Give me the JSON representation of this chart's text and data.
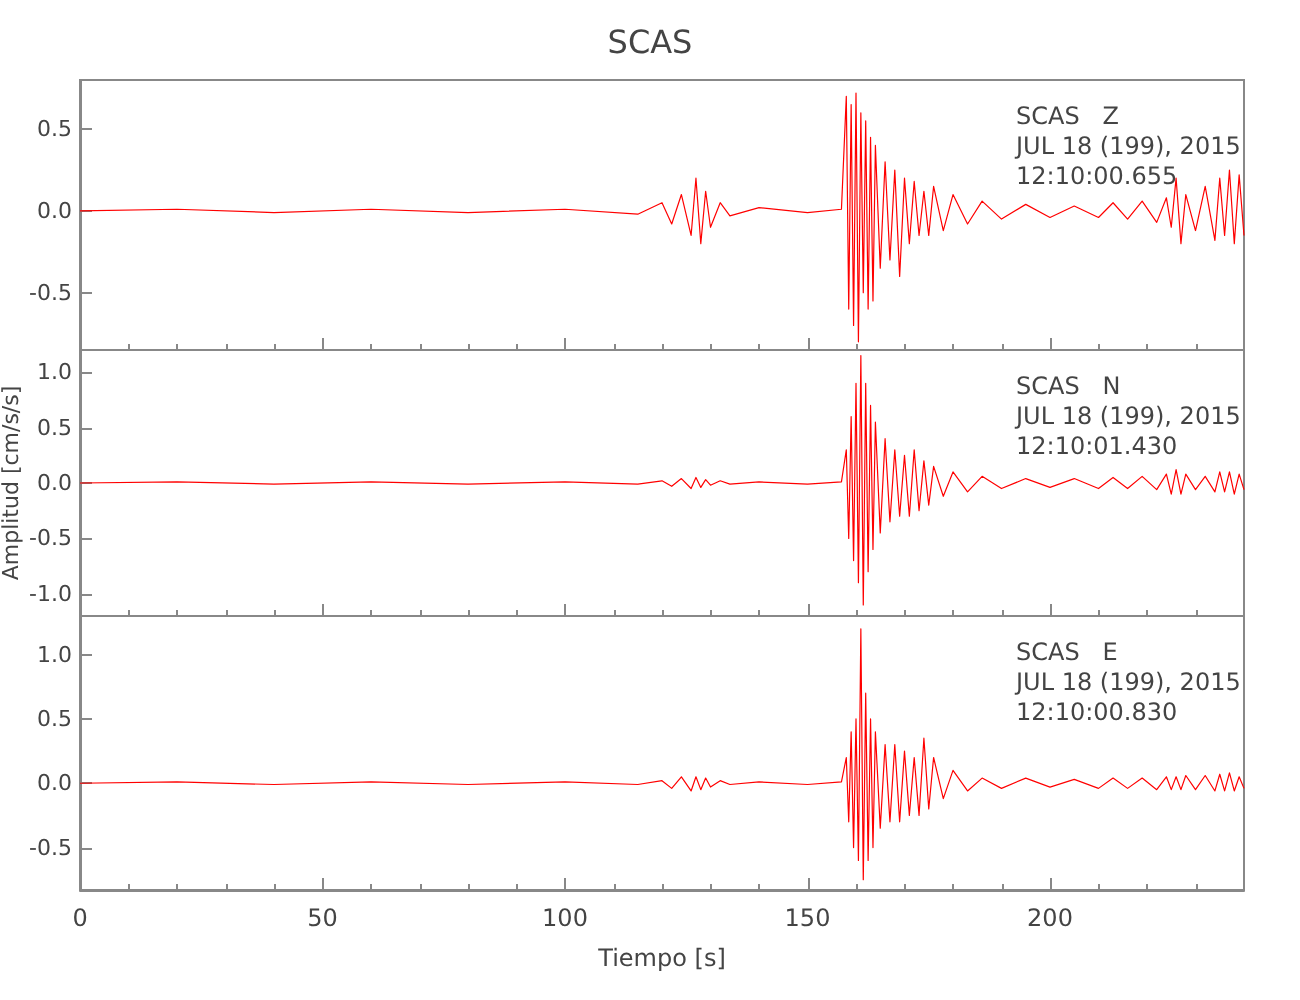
{
  "chart_data": [
    {
      "type": "line",
      "title": "SCAS",
      "xlim": [
        0,
        240
      ],
      "xticks": [
        0,
        50,
        100,
        150,
        200
      ],
      "ylim": [
        -0.85,
        0.8
      ],
      "yticks": [
        {
          "value": -0.5,
          "label": "-0.5"
        },
        {
          "value": 0,
          "label": "0.0"
        },
        {
          "value": 0.5,
          "label": "0.5"
        }
      ],
      "tick_labels": "y",
      "grid": false,
      "marker": "none",
      "line_style": "solid",
      "annotations": [
        "SCAS   Z",
        "JUL 18 (199), 2015",
        "12:10:00.655"
      ],
      "series": [
        {
          "color": "#ff0000",
          "x": [
            0,
            20,
            40,
            60,
            80,
            100,
            115,
            120,
            122,
            124,
            126,
            127,
            128,
            129,
            130,
            132,
            134,
            140,
            150,
            157,
            158,
            158.5,
            159,
            159.5,
            160,
            160.5,
            161,
            161.5,
            162,
            162.5,
            163,
            163.5,
            164,
            165,
            166,
            167,
            168,
            169,
            170,
            171,
            172,
            173,
            174,
            175,
            176,
            178,
            180,
            183,
            186,
            190,
            195,
            200,
            205,
            210,
            213,
            216,
            219,
            222,
            224,
            225,
            226,
            227,
            228,
            230,
            232,
            234,
            235,
            236,
            237,
            238,
            239,
            240
          ],
          "values": [
            0,
            0.01,
            -0.01,
            0.01,
            -0.01,
            0.01,
            -0.02,
            0.05,
            -0.08,
            0.1,
            -0.15,
            0.2,
            -0.2,
            0.12,
            -0.1,
            0.05,
            -0.03,
            0.02,
            -0.01,
            0.01,
            0.7,
            -0.6,
            0.65,
            -0.7,
            0.72,
            -0.8,
            0.6,
            -0.5,
            0.55,
            -0.6,
            0.45,
            -0.55,
            0.4,
            -0.35,
            0.3,
            -0.3,
            0.25,
            -0.4,
            0.2,
            -0.2,
            0.18,
            -0.15,
            0.12,
            -0.15,
            0.15,
            -0.12,
            0.1,
            -0.08,
            0.06,
            -0.05,
            0.04,
            -0.04,
            0.03,
            -0.04,
            0.05,
            -0.05,
            0.06,
            -0.07,
            0.08,
            -0.1,
            0.2,
            -0.2,
            0.1,
            -0.12,
            0.15,
            -0.18,
            0.2,
            -0.15,
            0.25,
            -0.2,
            0.22,
            -0.15
          ]
        }
      ]
    },
    {
      "type": "line",
      "ylabel": "Amplitud [cm/s/s]",
      "xlim": [
        0,
        240
      ],
      "xticks": [
        0,
        50,
        100,
        150,
        200
      ],
      "ylim": [
        -1.2,
        1.2
      ],
      "yticks": [
        {
          "value": -1,
          "label": "-1.0"
        },
        {
          "value": -0.5,
          "label": "-0.5"
        },
        {
          "value": 0,
          "label": "0.0"
        },
        {
          "value": 0.5,
          "label": "0.5"
        },
        {
          "value": 1,
          "label": "1.0"
        }
      ],
      "tick_labels": "y",
      "grid": false,
      "marker": "none",
      "line_style": "solid",
      "annotations": [
        "SCAS   N",
        "JUL 18 (199), 2015",
        "12:10:01.430"
      ],
      "series": [
        {
          "color": "#ff0000",
          "x": [
            0,
            20,
            40,
            60,
            80,
            100,
            115,
            120,
            122,
            124,
            126,
            127,
            128,
            129,
            130,
            132,
            134,
            140,
            150,
            157,
            158,
            158.5,
            159,
            159.5,
            160,
            160.5,
            161,
            161.5,
            162,
            162.5,
            163,
            163.5,
            164,
            165,
            166,
            167,
            168,
            169,
            170,
            171,
            172,
            173,
            174,
            175,
            176,
            178,
            180,
            183,
            186,
            190,
            195,
            200,
            205,
            210,
            213,
            216,
            219,
            222,
            224,
            225,
            226,
            227,
            228,
            230,
            232,
            234,
            235,
            236,
            237,
            238,
            239,
            240
          ],
          "values": [
            0,
            0.01,
            -0.01,
            0.01,
            -0.01,
            0.01,
            -0.01,
            0.02,
            -0.03,
            0.04,
            -0.05,
            0.05,
            -0.04,
            0.03,
            -0.02,
            0.02,
            -0.01,
            0.01,
            -0.01,
            0.01,
            0.3,
            -0.5,
            0.6,
            -0.7,
            0.9,
            -0.9,
            1.15,
            -1.1,
            0.9,
            -0.8,
            0.7,
            -0.6,
            0.55,
            -0.45,
            0.4,
            -0.35,
            0.3,
            -0.3,
            0.25,
            -0.3,
            0.3,
            -0.25,
            0.2,
            -0.2,
            0.15,
            -0.12,
            0.1,
            -0.08,
            0.06,
            -0.05,
            0.04,
            -0.04,
            0.04,
            -0.05,
            0.05,
            -0.05,
            0.06,
            -0.06,
            0.08,
            -0.1,
            0.12,
            -0.1,
            0.08,
            -0.06,
            0.06,
            -0.08,
            0.1,
            -0.08,
            0.1,
            -0.1,
            0.08,
            -0.06
          ]
        }
      ]
    },
    {
      "type": "line",
      "xlabel": "Tiempo [s]",
      "xlim": [
        0,
        240
      ],
      "xticks": [
        0,
        50,
        100,
        150,
        200
      ],
      "ylim": [
        -0.83,
        1.3
      ],
      "yticks": [
        {
          "value": -0.5,
          "label": "-0.5"
        },
        {
          "value": 0,
          "label": "0.0"
        },
        {
          "value": 0.5,
          "label": "0.5"
        },
        {
          "value": 1,
          "label": "1.0"
        }
      ],
      "grid": false,
      "marker": "none",
      "line_style": "solid",
      "annotations": [
        "SCAS   E",
        "JUL 18 (199), 2015",
        "12:10:00.830"
      ],
      "series": [
        {
          "color": "#ff0000",
          "x": [
            0,
            20,
            40,
            60,
            80,
            100,
            115,
            120,
            122,
            124,
            126,
            127,
            128,
            129,
            130,
            132,
            134,
            140,
            150,
            157,
            158,
            158.5,
            159,
            159.5,
            160,
            160.5,
            161,
            161.5,
            162,
            162.5,
            163,
            163.5,
            164,
            165,
            166,
            167,
            168,
            169,
            170,
            171,
            172,
            173,
            174,
            175,
            176,
            178,
            180,
            183,
            186,
            190,
            195,
            200,
            205,
            210,
            213,
            216,
            219,
            222,
            224,
            225,
            226,
            227,
            228,
            230,
            232,
            234,
            235,
            236,
            237,
            238,
            239,
            240
          ],
          "values": [
            0,
            0.01,
            -0.01,
            0.01,
            -0.01,
            0.01,
            -0.01,
            0.02,
            -0.04,
            0.05,
            -0.06,
            0.05,
            -0.05,
            0.04,
            -0.03,
            0.02,
            -0.01,
            0.01,
            -0.01,
            0.01,
            0.2,
            -0.3,
            0.4,
            -0.5,
            0.5,
            -0.6,
            1.2,
            -0.75,
            0.7,
            -0.6,
            0.5,
            -0.5,
            0.4,
            -0.35,
            0.3,
            -0.3,
            0.3,
            -0.3,
            0.25,
            -0.25,
            0.2,
            -0.25,
            0.35,
            -0.2,
            0.2,
            -0.12,
            0.1,
            -0.06,
            0.04,
            -0.04,
            0.04,
            -0.03,
            0.03,
            -0.04,
            0.04,
            -0.04,
            0.04,
            -0.05,
            0.05,
            -0.05,
            0.05,
            -0.05,
            0.06,
            -0.05,
            0.06,
            -0.06,
            0.07,
            -0.06,
            0.08,
            -0.06,
            0.05,
            -0.04
          ]
        }
      ]
    }
  ]
}
